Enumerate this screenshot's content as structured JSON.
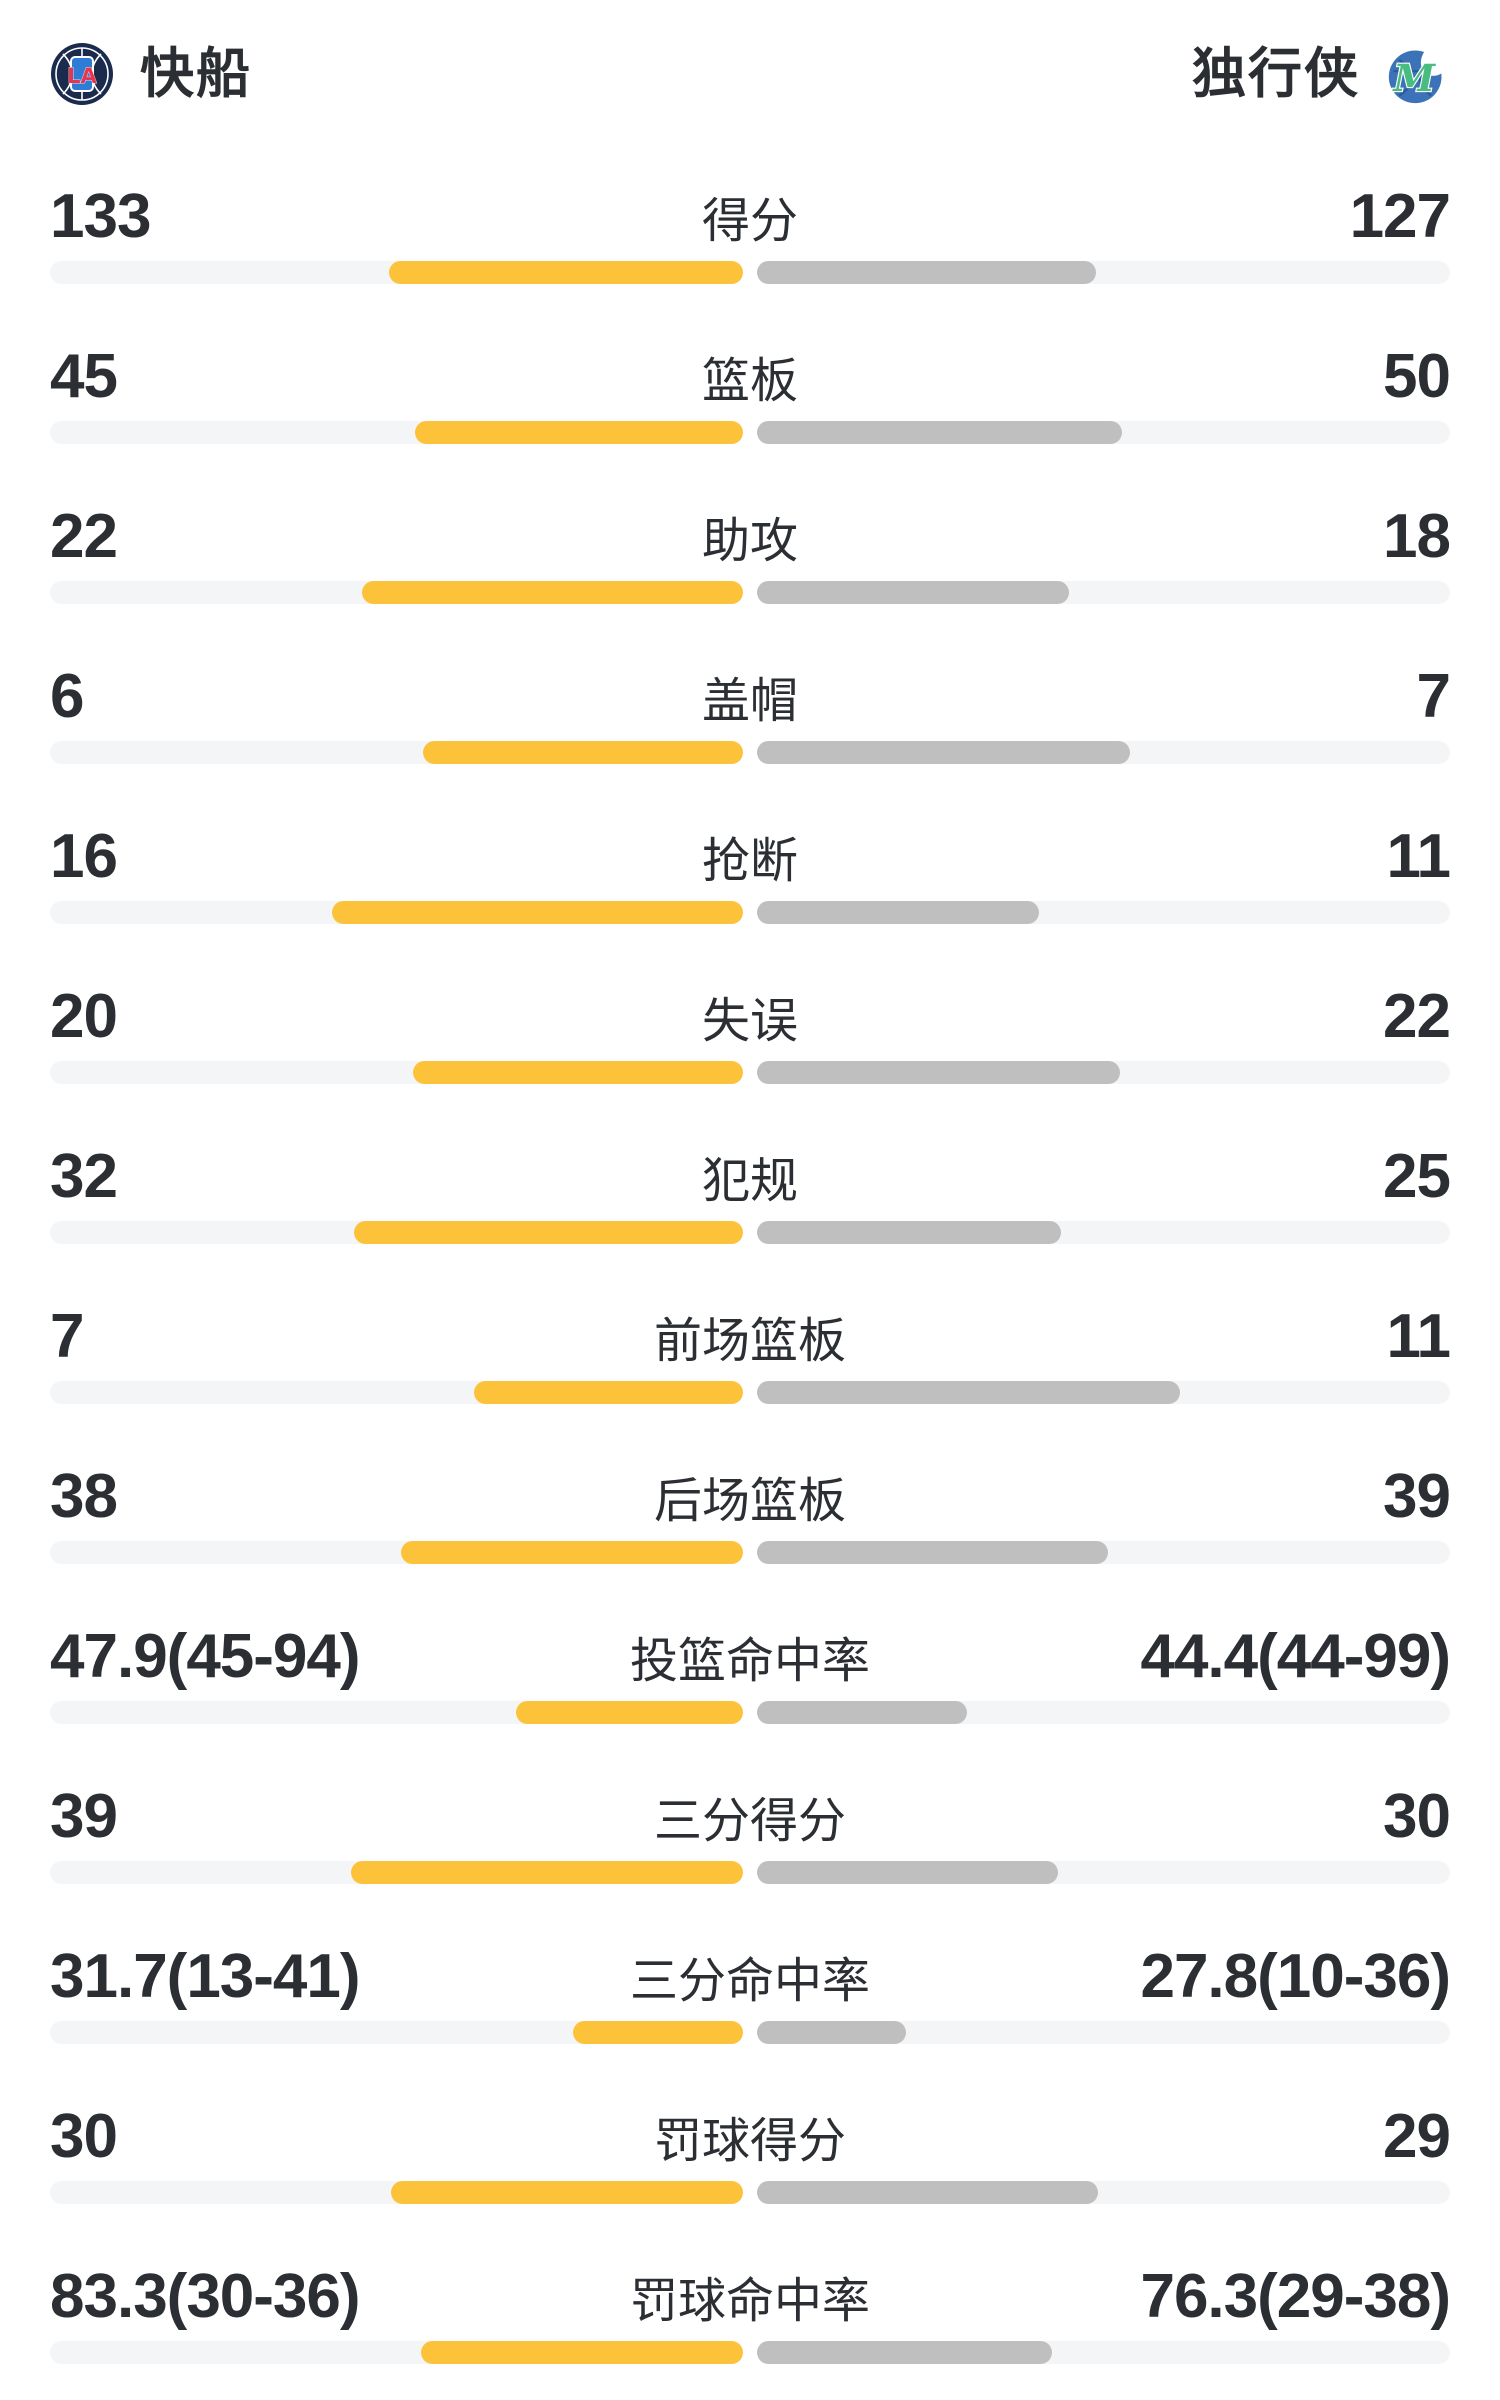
{
  "header": {
    "home_name": "快船",
    "away_name": "独行侠",
    "home_logo_icon": "la-clippers-logo",
    "away_logo_icon": "dallas-mavericks-logo"
  },
  "colors": {
    "left_bar": "#fcc33a",
    "right_bar": "#bfbfbf",
    "track": "#f4f5f7",
    "text": "#2b2e33",
    "clippers_navy": "#1b2b4d",
    "clippers_blue": "#2f7cd6",
    "clippers_red": "#e8354f",
    "mavs_blue": "#3b72b8",
    "mavs_green": "#49bd80"
  },
  "chart_data": {
    "type": "bar",
    "orientation": "horizontal-paired",
    "legend": [
      "快船",
      "独行侠"
    ],
    "legend_position": "top",
    "grid": false,
    "rows": [
      {
        "label": "得分",
        "left": "133",
        "right": "127",
        "left_num": 133,
        "right_num": 127,
        "bar_scale": 1
      },
      {
        "label": "篮板",
        "left": "45",
        "right": "50",
        "left_num": 45,
        "right_num": 50,
        "bar_scale": 1
      },
      {
        "label": "助攻",
        "left": "22",
        "right": "18",
        "left_num": 22,
        "right_num": 18,
        "bar_scale": 1
      },
      {
        "label": "盖帽",
        "left": "6",
        "right": "7",
        "left_num": 6,
        "right_num": 7,
        "bar_scale": 1
      },
      {
        "label": "抢断",
        "left": "16",
        "right": "11",
        "left_num": 16,
        "right_num": 11,
        "bar_scale": 1
      },
      {
        "label": "失误",
        "left": "20",
        "right": "22",
        "left_num": 20,
        "right_num": 22,
        "bar_scale": 1
      },
      {
        "label": "犯规",
        "left": "32",
        "right": "25",
        "left_num": 32,
        "right_num": 25,
        "bar_scale": 1
      },
      {
        "label": "前场篮板",
        "left": "7",
        "right": "11",
        "left_num": 7,
        "right_num": 11,
        "bar_scale": 1
      },
      {
        "label": "后场篮板",
        "left": "38",
        "right": "39",
        "left_num": 38,
        "right_num": 39,
        "bar_scale": 1
      },
      {
        "label": "投篮命中率",
        "left": "47.9(45-94)",
        "right": "44.4(44-99)",
        "left_num": 47.9,
        "right_num": 44.4,
        "bar_scale": 0.63
      },
      {
        "label": "三分得分",
        "left": "39",
        "right": "30",
        "left_num": 39,
        "right_num": 30,
        "bar_scale": 1
      },
      {
        "label": "三分命中率",
        "left": "31.7(13-41)",
        "right": "27.8(10-36)",
        "left_num": 31.7,
        "right_num": 27.8,
        "bar_scale": 0.46
      },
      {
        "label": "罚球得分",
        "left": "30",
        "right": "29",
        "left_num": 30,
        "right_num": 29,
        "bar_scale": 1
      },
      {
        "label": "罚球命中率",
        "left": "83.3(30-36)",
        "right": "76.3(29-38)",
        "left_num": 83.3,
        "right_num": 76.3,
        "bar_scale": 0.89
      }
    ]
  }
}
